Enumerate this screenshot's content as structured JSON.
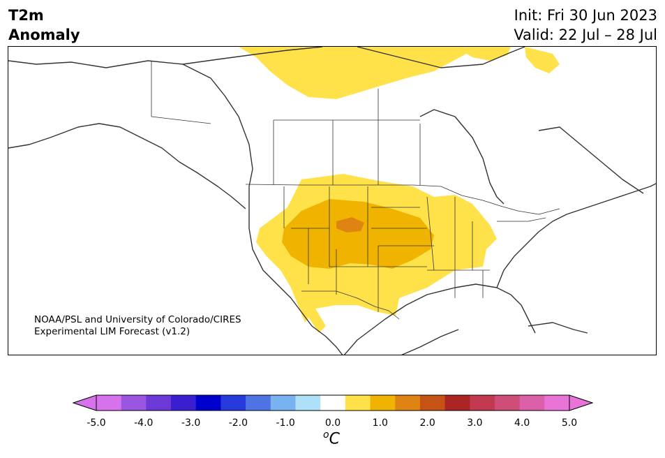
{
  "title": {
    "left_line1": "T2m",
    "left_line2": "Anomaly",
    "right_line1": "Init: Fri 30 Jun 2023",
    "right_line2": "Valid: 22 Jul – 28 Jul"
  },
  "credit": {
    "line1": "NOAA/PSL and University of Colorado/CIRES",
    "line2": "Experimental LIM Forecast (v1.2)"
  },
  "colorbar": {
    "unit_sup": "o",
    "unit": "C",
    "ticks": [
      "-5.0",
      "-4.0",
      "-3.0",
      "-2.0",
      "-1.0",
      "0.0",
      "1.0",
      "2.0",
      "3.0",
      "4.0",
      "5.0"
    ],
    "levels": [
      -5.0,
      -4.5,
      -4.0,
      -3.5,
      -3.0,
      -2.5,
      -2.0,
      -1.5,
      -1.0,
      -0.5,
      0.5,
      1.0,
      1.5,
      2.0,
      2.5,
      3.0,
      3.5,
      4.0,
      4.5,
      5.0
    ],
    "colors": [
      "#d672ec",
      "#9a56e0",
      "#6c38d8",
      "#3a1fd0",
      "#0000cc",
      "#2539dc",
      "#4e74e4",
      "#78b2f0",
      "#aee0fa",
      "#ffffff",
      "#ffe24a",
      "#f0b400",
      "#df8412",
      "#c65316",
      "#ad2424",
      "#c23a50",
      "#cf4e78",
      "#db60a8",
      "#e874d8"
    ],
    "extend_low_color": "#d672ec",
    "extend_high_color": "#e874d8"
  },
  "map": {
    "anomaly_colors": {
      "light": "#ffe24a",
      "medium": "#f0b400",
      "strong": "#df8412"
    },
    "coastline_color": "#333333"
  }
}
